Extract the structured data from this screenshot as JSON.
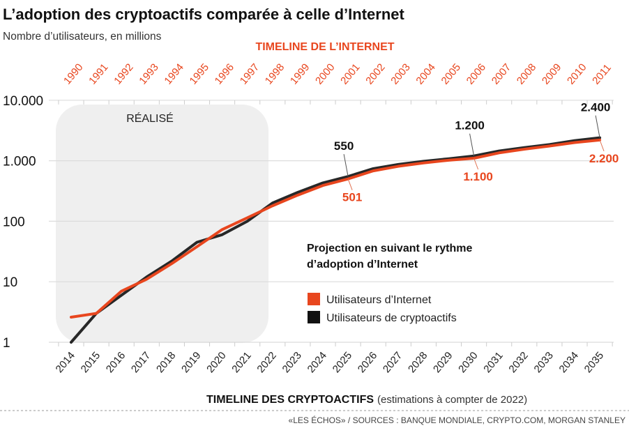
{
  "colors": {
    "internet": "#e8461e",
    "crypto": "#111111",
    "grid": "#dddddd",
    "realise_box": "#efefef"
  },
  "chart_data": {
    "type": "line",
    "title": "L’adoption des cryptoactifs comparée à celle d’Internet",
    "subtitle": "Nombre d’utilisateurs, en millions",
    "top_axis_title": "TIMELINE DE L’INTERNET",
    "top_axis_ticks": [
      "1990",
      "1991",
      "1992",
      "1993",
      "1994",
      "1995",
      "1996",
      "1997",
      "1998",
      "1999",
      "2000",
      "2001",
      "2002",
      "2003",
      "2004",
      "2005",
      "2006",
      "2007",
      "2008",
      "2009",
      "2010",
      "2011"
    ],
    "x": [
      "2014",
      "2015",
      "2016",
      "2017",
      "2018",
      "2019",
      "2020",
      "2021",
      "2022",
      "2023",
      "2024",
      "2025",
      "2026",
      "2027",
      "2028",
      "2029",
      "2030",
      "2031",
      "2032",
      "2033",
      "2034",
      "2035"
    ],
    "xlabel_bold": "TIMELINE DES CRYPTOACTIFS",
    "xlabel_note": "(estimations à compter de 2022)",
    "y_scale": "log",
    "ylim": [
      1,
      10000
    ],
    "y_ticks": [
      {
        "value": 1,
        "label": "1"
      },
      {
        "value": 10,
        "label": "10"
      },
      {
        "value": 100,
        "label": "100"
      },
      {
        "value": 1000,
        "label": "1.000"
      },
      {
        "value": 10000,
        "label": "10.000"
      }
    ],
    "grid": true,
    "shaded_region": {
      "label": "RÉALISÉ",
      "from": "2014",
      "to": "2022"
    },
    "legend_title": [
      "Projection en suivant le rythme",
      "d’adoption d’Internet"
    ],
    "legend_position": "center-right",
    "series": [
      {
        "name": "Utilisateurs d’Internet",
        "color": "#e8461e",
        "values": [
          2.6,
          3,
          7,
          11,
          20,
          38,
          73,
          114,
          180,
          270,
          390,
          501,
          680,
          810,
          920,
          1020,
          1100,
          1350,
          1550,
          1750,
          2000,
          2200
        ]
      },
      {
        "name": "Utilisateurs de cryptoactifs",
        "color": "#111111",
        "values": [
          1,
          3,
          6,
          12,
          22,
          45,
          60,
          100,
          200,
          300,
          430,
          550,
          740,
          870,
          980,
          1080,
          1200,
          1450,
          1650,
          1850,
          2150,
          2400
        ]
      }
    ],
    "annotations": [
      {
        "series": 1,
        "x": "2025",
        "label": "550"
      },
      {
        "series": 0,
        "x": "2025",
        "label": "501"
      },
      {
        "series": 1,
        "x": "2030",
        "label": "1.200"
      },
      {
        "series": 0,
        "x": "2030",
        "label": "1.100"
      },
      {
        "series": 1,
        "x": "2035",
        "label": "2.400"
      },
      {
        "series": 0,
        "x": "2035",
        "label": "2.200"
      }
    ]
  },
  "footer": "«LES ÉCHOS» / SOURCES : BANQUE MONDIALE, CRYPTO.COM, MORGAN STANLEY"
}
